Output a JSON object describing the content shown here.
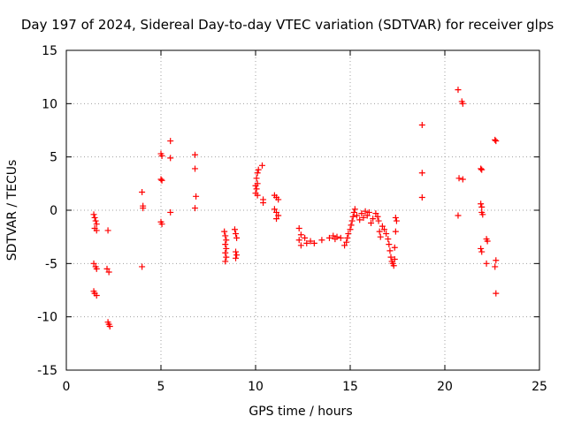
{
  "chart_data": {
    "type": "scatter",
    "title": "Day 197 of 2024, Sidereal Day-to-day VTEC variation (SDTVAR) for receiver glps",
    "xlabel": "GPS time / hours",
    "ylabel": "SDTVAR / TECUs",
    "xlim": [
      0,
      25
    ],
    "ylim": [
      -15,
      15
    ],
    "xticks": [
      0,
      5,
      10,
      15,
      20,
      25
    ],
    "yticks": [
      -15,
      -10,
      -5,
      0,
      5,
      10,
      15
    ],
    "grid": true,
    "marker": "+",
    "marker_color": "#ff0000",
    "series": [
      {
        "name": "SDTVAR",
        "points": [
          [
            1.45,
            -0.4
          ],
          [
            1.5,
            -0.7
          ],
          [
            1.55,
            -1.0
          ],
          [
            1.6,
            -1.3
          ],
          [
            1.5,
            -1.7
          ],
          [
            1.6,
            -1.9
          ],
          [
            1.45,
            -5.0
          ],
          [
            1.55,
            -5.3
          ],
          [
            1.6,
            -5.5
          ],
          [
            1.45,
            -7.6
          ],
          [
            1.5,
            -7.8
          ],
          [
            1.6,
            -8.0
          ],
          [
            2.2,
            -1.9
          ],
          [
            2.15,
            -5.5
          ],
          [
            2.25,
            -5.8
          ],
          [
            2.2,
            -10.5
          ],
          [
            2.25,
            -10.7
          ],
          [
            2.3,
            -10.9
          ],
          [
            4.0,
            1.7
          ],
          [
            4.05,
            0.4
          ],
          [
            4.05,
            0.2
          ],
          [
            4.0,
            -5.3
          ],
          [
            5.0,
            5.3
          ],
          [
            5.05,
            5.1
          ],
          [
            5.0,
            2.9
          ],
          [
            5.05,
            2.8
          ],
          [
            5.0,
            -1.1
          ],
          [
            5.05,
            -1.3
          ],
          [
            5.5,
            6.5
          ],
          [
            5.5,
            4.9
          ],
          [
            5.5,
            -0.2
          ],
          [
            6.8,
            5.2
          ],
          [
            6.8,
            3.9
          ],
          [
            6.85,
            1.3
          ],
          [
            6.8,
            0.2
          ],
          [
            8.35,
            -2.0
          ],
          [
            8.4,
            -2.4
          ],
          [
            8.45,
            -2.8
          ],
          [
            8.4,
            -3.2
          ],
          [
            8.45,
            -3.6
          ],
          [
            8.4,
            -4.0
          ],
          [
            8.45,
            -4.4
          ],
          [
            8.4,
            -4.8
          ],
          [
            8.9,
            -1.8
          ],
          [
            8.95,
            -2.2
          ],
          [
            9.0,
            -2.6
          ],
          [
            8.95,
            -3.9
          ],
          [
            9.0,
            -4.2
          ],
          [
            8.95,
            -4.5
          ],
          [
            10.0,
            1.6
          ],
          [
            10.05,
            2.0
          ],
          [
            10.1,
            2.5
          ],
          [
            10.05,
            3.0
          ],
          [
            10.1,
            3.5
          ],
          [
            10.15,
            3.8
          ],
          [
            10.0,
            2.3
          ],
          [
            10.1,
            1.4
          ],
          [
            10.35,
            4.2
          ],
          [
            10.4,
            1.0
          ],
          [
            10.4,
            0.7
          ],
          [
            11.0,
            1.4
          ],
          [
            11.1,
            1.2
          ],
          [
            11.2,
            1.0
          ],
          [
            11.0,
            0.1
          ],
          [
            11.1,
            -0.2
          ],
          [
            11.2,
            -0.5
          ],
          [
            11.1,
            -0.8
          ],
          [
            12.3,
            -1.7
          ],
          [
            12.4,
            -2.3
          ],
          [
            12.3,
            -2.8
          ],
          [
            12.4,
            -3.3
          ],
          [
            12.6,
            -2.6
          ],
          [
            12.7,
            -3.1
          ],
          [
            12.9,
            -2.9
          ],
          [
            13.1,
            -3.1
          ],
          [
            13.5,
            -2.8
          ],
          [
            13.9,
            -2.6
          ],
          [
            14.1,
            -2.4
          ],
          [
            14.2,
            -2.7
          ],
          [
            14.3,
            -2.5
          ],
          [
            14.5,
            -2.6
          ],
          [
            14.7,
            -3.3
          ],
          [
            14.8,
            -3.0
          ],
          [
            14.85,
            -2.6
          ],
          [
            14.9,
            -2.2
          ],
          [
            15.0,
            -1.8
          ],
          [
            15.05,
            -1.4
          ],
          [
            15.1,
            -1.0
          ],
          [
            15.15,
            -0.6
          ],
          [
            15.2,
            -0.2
          ],
          [
            15.25,
            0.1
          ],
          [
            15.35,
            -0.5
          ],
          [
            15.5,
            -0.9
          ],
          [
            15.6,
            -0.3
          ],
          [
            15.7,
            -0.7
          ],
          [
            15.8,
            -0.1
          ],
          [
            15.9,
            -0.5
          ],
          [
            16.0,
            -0.2
          ],
          [
            16.1,
            -1.2
          ],
          [
            16.2,
            -0.8
          ],
          [
            16.35,
            -0.3
          ],
          [
            16.45,
            -0.6
          ],
          [
            16.5,
            -1.0
          ],
          [
            16.55,
            -2.0
          ],
          [
            16.6,
            -2.5
          ],
          [
            16.7,
            -1.5
          ],
          [
            16.8,
            -1.8
          ],
          [
            16.9,
            -2.2
          ],
          [
            17.0,
            -2.7
          ],
          [
            17.05,
            -3.2
          ],
          [
            17.1,
            -3.8
          ],
          [
            17.15,
            -4.4
          ],
          [
            17.2,
            -4.8
          ],
          [
            17.25,
            -5.0
          ],
          [
            17.3,
            -5.2
          ],
          [
            17.35,
            -3.5
          ],
          [
            17.4,
            -2.0
          ],
          [
            17.45,
            -1.0
          ],
          [
            17.35,
            -4.6
          ],
          [
            17.4,
            -0.7
          ],
          [
            18.8,
            8.0
          ],
          [
            18.8,
            3.5
          ],
          [
            18.8,
            1.2
          ],
          [
            20.7,
            11.3
          ],
          [
            20.9,
            10.2
          ],
          [
            20.95,
            10.0
          ],
          [
            20.75,
            3.0
          ],
          [
            20.95,
            2.9
          ],
          [
            20.7,
            -0.5
          ],
          [
            21.9,
            3.9
          ],
          [
            21.95,
            3.8
          ],
          [
            21.9,
            0.6
          ],
          [
            21.95,
            0.3
          ],
          [
            21.95,
            -0.2
          ],
          [
            22.0,
            -0.4
          ],
          [
            21.9,
            -3.6
          ],
          [
            21.95,
            -3.9
          ],
          [
            22.2,
            -2.7
          ],
          [
            22.25,
            -2.9
          ],
          [
            22.2,
            -5.0
          ],
          [
            22.65,
            6.6
          ],
          [
            22.7,
            6.5
          ],
          [
            22.7,
            -4.7
          ],
          [
            22.65,
            -5.3
          ],
          [
            22.7,
            -7.8
          ]
        ]
      }
    ]
  }
}
